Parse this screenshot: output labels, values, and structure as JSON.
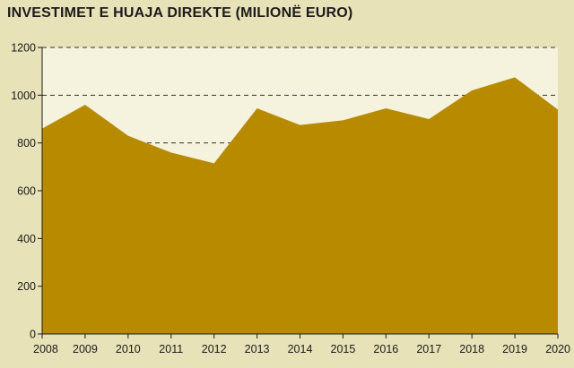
{
  "chart_data": {
    "type": "area",
    "title": "INVESTIMET E HUAJA DIREKTE (MILIONË EURO)",
    "categories": [
      "2008",
      "2009",
      "2010",
      "2011",
      "2012",
      "2013",
      "2014",
      "2015",
      "2016",
      "2017",
      "2018",
      "2019",
      "2020"
    ],
    "values": [
      860,
      960,
      830,
      760,
      715,
      945,
      875,
      895,
      945,
      900,
      1020,
      1075,
      940
    ],
    "ylim": [
      0,
      1200
    ],
    "yticks": [
      0,
      200,
      400,
      600,
      800,
      1000,
      1200
    ],
    "grid": true,
    "colors": {
      "area": "#b88a00",
      "plot_background": "#f5f3de",
      "page_background": "#e7e2b7",
      "grid": "#333333"
    }
  }
}
